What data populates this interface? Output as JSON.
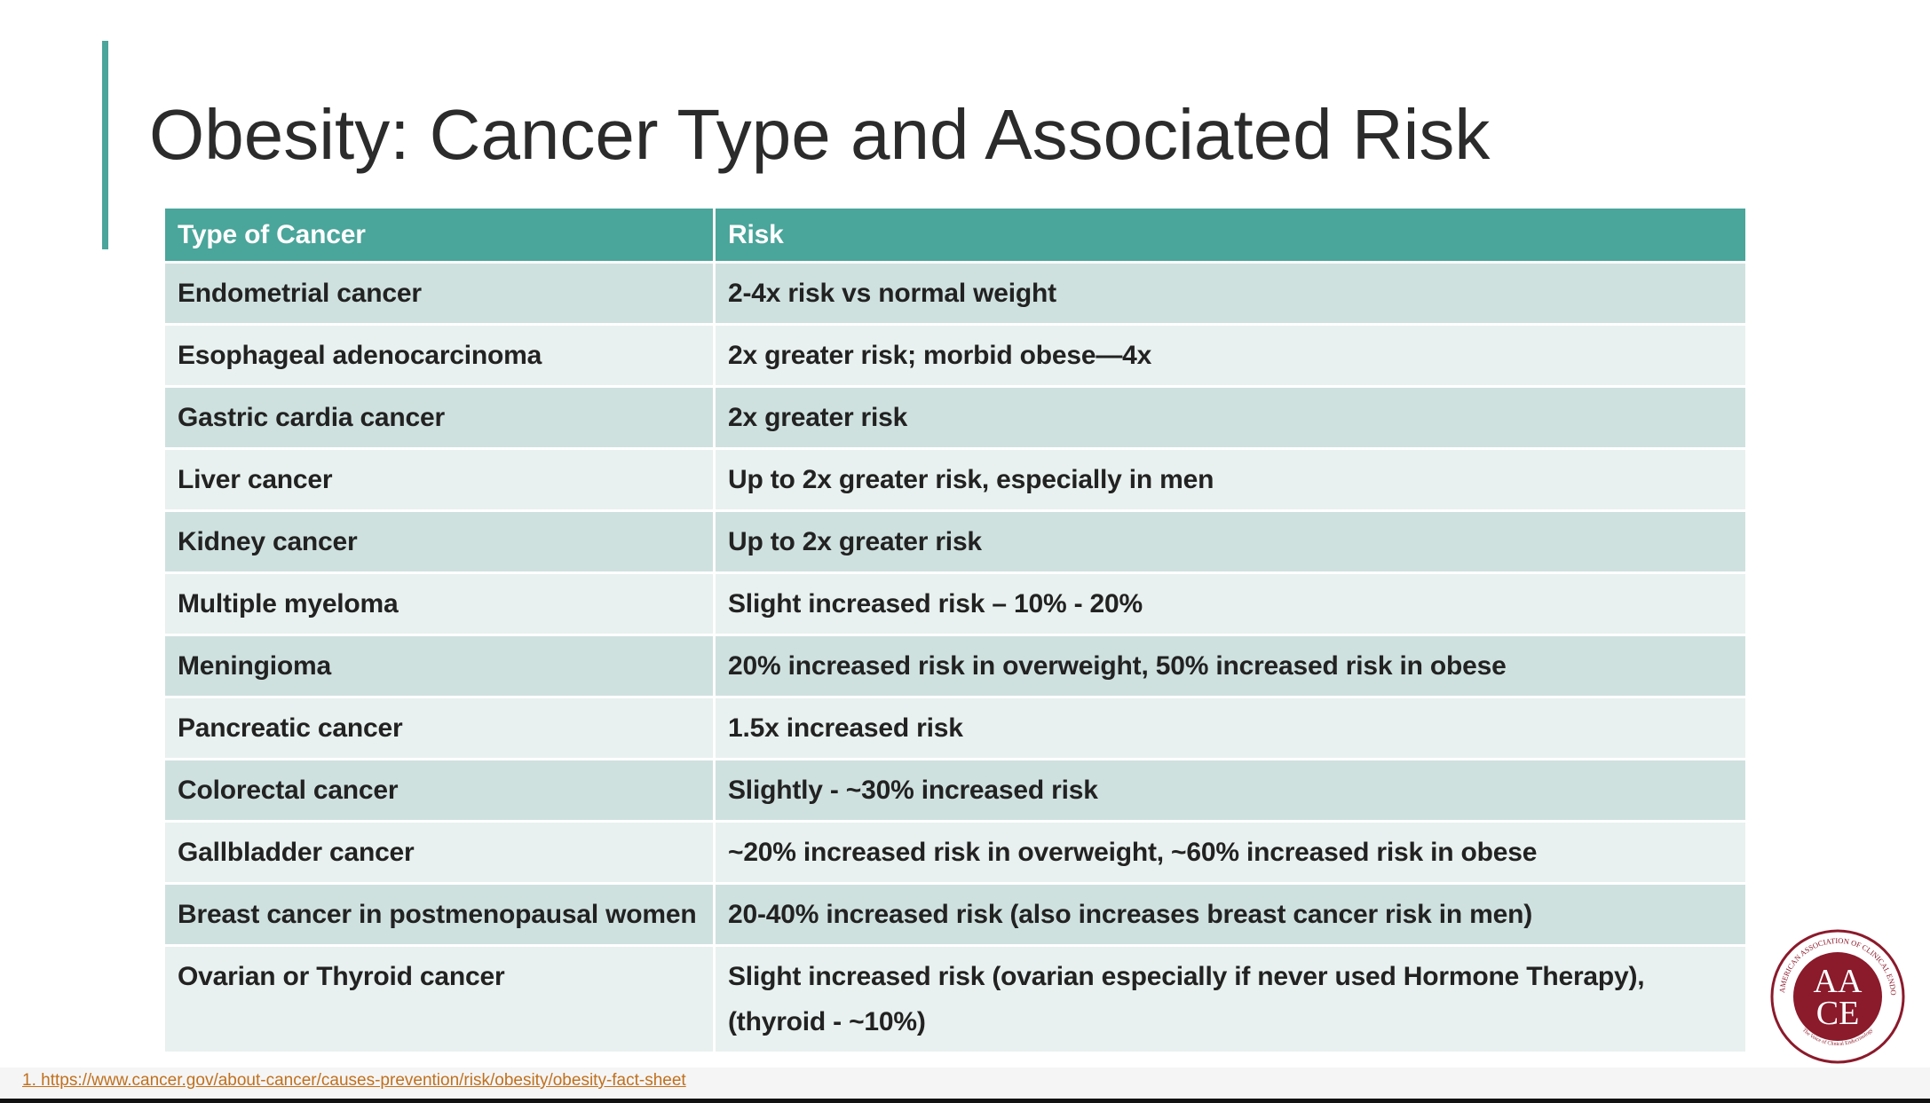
{
  "title": "Obesity: Cancer Type and Associated Risk",
  "table": {
    "header": [
      "Type of Cancer",
      "Risk"
    ],
    "rows": [
      [
        "Endometrial cancer",
        "2-4x risk vs normal weight"
      ],
      [
        "Esophageal adenocarcinoma",
        "2x greater risk; morbid obese—4x"
      ],
      [
        "Gastric cardia cancer",
        "2x greater risk"
      ],
      [
        "Liver cancer",
        "Up to 2x greater risk, especially in men"
      ],
      [
        "Kidney cancer",
        "Up to 2x greater risk"
      ],
      [
        "Multiple myeloma",
        "Slight increased risk – 10% - 20%"
      ],
      [
        "Meningioma",
        "20% increased risk in overweight, 50% increased risk in obese"
      ],
      [
        "Pancreatic cancer",
        "1.5x increased risk"
      ],
      [
        "Colorectal cancer",
        "Slightly - ~30% increased risk"
      ],
      [
        "Gallbladder cancer",
        "~20% increased risk in overweight, ~60% increased risk in obese"
      ],
      [
        "Breast cancer in postmenopausal women",
        "20-40% increased risk (also increases breast cancer risk in men)"
      ],
      [
        "Ovarian or Thyroid cancer",
        "Slight increased risk (ovarian especially if never used Hormone Therapy), (thyroid - ~10%)"
      ]
    ]
  },
  "footnote": "1. https://www.cancer.gov/about-cancer/causes-prevention/risk/obesity/obesity-fact-sheet",
  "logo": {
    "lines": [
      "AA",
      "CE"
    ],
    "ring": "AMERICAN ASSOCIATION OF CLINICAL ENDOCRINOLOGISTS",
    "motto": "The Voice of Clinical Endocrinology"
  }
}
